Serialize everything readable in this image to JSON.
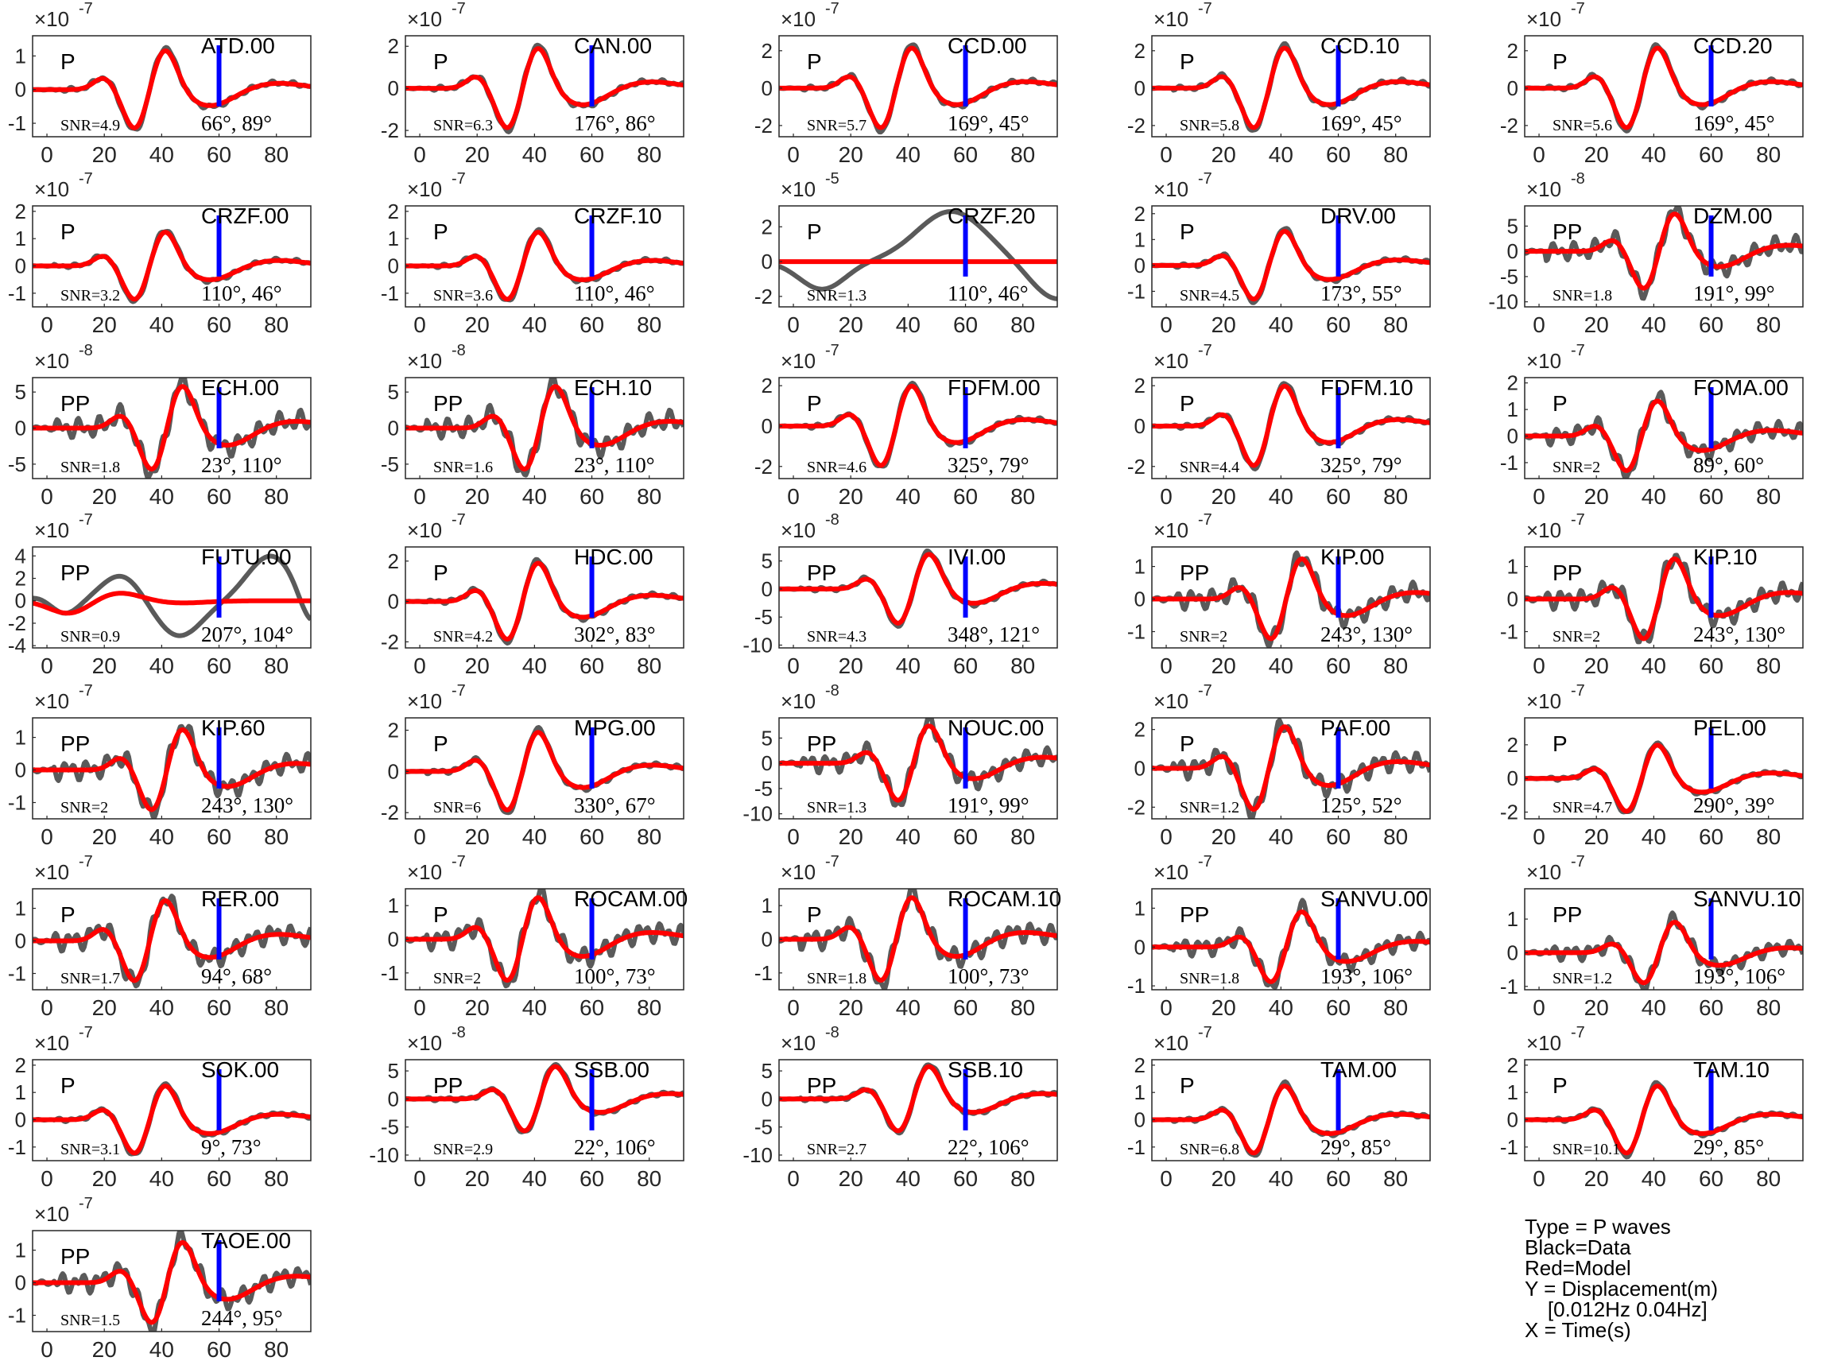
{
  "xticks": [
    0,
    20,
    40,
    60,
    80
  ],
  "xlim": [
    -5,
    92
  ],
  "colors": {
    "data": "#5a5a5a",
    "model": "#ff0000",
    "marker": "#0000ff"
  },
  "marker_time": 60,
  "panels": [
    {
      "station": "ATD.00",
      "phase": "P",
      "snr": "SNR=4.9",
      "angles": "66°, 89°",
      "exp": "-7",
      "yticks": [
        -1,
        0,
        1
      ],
      "ylim": [
        -1.4,
        1.6
      ]
    },
    {
      "station": "CAN.00",
      "phase": "P",
      "snr": "SNR=6.3",
      "angles": "176°, 86°",
      "exp": "-7",
      "yticks": [
        -2,
        0,
        2
      ],
      "ylim": [
        -2.3,
        2.5
      ]
    },
    {
      "station": "CCD.00",
      "phase": "P",
      "snr": "SNR=5.7",
      "angles": "169°, 45°",
      "exp": "-7",
      "yticks": [
        -2,
        0,
        2
      ],
      "ylim": [
        -2.6,
        2.8
      ]
    },
    {
      "station": "CCD.10",
      "phase": "P",
      "snr": "SNR=5.8",
      "angles": "169°, 45°",
      "exp": "-7",
      "yticks": [
        -2,
        0,
        2
      ],
      "ylim": [
        -2.6,
        2.8
      ]
    },
    {
      "station": "CCD.20",
      "phase": "P",
      "snr": "SNR=5.6",
      "angles": "169°, 45°",
      "exp": "-7",
      "yticks": [
        -2,
        0,
        2
      ],
      "ylim": [
        -2.6,
        2.8
      ]
    },
    {
      "station": "CRZF.00",
      "phase": "P",
      "snr": "SNR=3.2",
      "angles": "110°, 46°",
      "exp": "-7",
      "yticks": [
        -1,
        0,
        1,
        2
      ],
      "ylim": [
        -1.5,
        2.2
      ]
    },
    {
      "station": "CRZF.10",
      "phase": "P",
      "snr": "SNR=3.6",
      "angles": "110°, 46°",
      "exp": "-7",
      "yticks": [
        -1,
        0,
        1,
        2
      ],
      "ylim": [
        -1.5,
        2.2
      ]
    },
    {
      "station": "CRZF.20",
      "phase": "P",
      "snr": "SNR=1.3",
      "angles": "110°, 46°",
      "exp": "-5",
      "yticks": [
        -2,
        0,
        2
      ],
      "ylim": [
        -2.6,
        3.2
      ]
    },
    {
      "station": "DRV.00",
      "phase": "P",
      "snr": "SNR=4.5",
      "angles": "173°, 55°",
      "exp": "-7",
      "yticks": [
        -1,
        0,
        1,
        2
      ],
      "ylim": [
        -1.6,
        2.3
      ]
    },
    {
      "station": "DZM.00",
      "phase": "PP",
      "snr": "SNR=1.8",
      "angles": "191°, 99°",
      "exp": "-8",
      "yticks": [
        -10,
        -5,
        0,
        5
      ],
      "ylim": [
        -11,
        9
      ]
    },
    {
      "station": "ECH.00",
      "phase": "PP",
      "snr": "SNR=1.8",
      "angles": "23°, 110°",
      "exp": "-8",
      "yticks": [
        -5,
        0,
        5
      ],
      "ylim": [
        -7,
        7
      ]
    },
    {
      "station": "ECH.10",
      "phase": "PP",
      "snr": "SNR=1.6",
      "angles": "23°, 110°",
      "exp": "-8",
      "yticks": [
        -5,
        0,
        5
      ],
      "ylim": [
        -7,
        7
      ]
    },
    {
      "station": "FDFM.00",
      "phase": "P",
      "snr": "SNR=4.6",
      "angles": "325°, 79°",
      "exp": "-7",
      "yticks": [
        -2,
        0,
        2
      ],
      "ylim": [
        -2.6,
        2.4
      ]
    },
    {
      "station": "FDFM.10",
      "phase": "P",
      "snr": "SNR=4.4",
      "angles": "325°, 79°",
      "exp": "-7",
      "yticks": [
        -2,
        0,
        2
      ],
      "ylim": [
        -2.6,
        2.4
      ]
    },
    {
      "station": "FOMA.00",
      "phase": "P",
      "snr": "SNR=2",
      "angles": "89°, 60°",
      "exp": "-7",
      "yticks": [
        -1,
        0,
        1,
        2
      ],
      "ylim": [
        -1.6,
        2.2
      ]
    },
    {
      "station": "FUTU.00",
      "phase": "PP",
      "snr": "SNR=0.9",
      "angles": "207°, 104°",
      "exp": "-7",
      "yticks": [
        -4,
        -2,
        0,
        2,
        4
      ],
      "ylim": [
        -4.2,
        4.8
      ]
    },
    {
      "station": "HDC.00",
      "phase": "P",
      "snr": "SNR=4.2",
      "angles": "302°, 83°",
      "exp": "-7",
      "yticks": [
        -2,
        0,
        2
      ],
      "ylim": [
        -2.3,
        2.7
      ]
    },
    {
      "station": "IVI.00",
      "phase": "PP",
      "snr": "SNR=4.3",
      "angles": "348°, 121°",
      "exp": "-8",
      "yticks": [
        -10,
        -5,
        0,
        5
      ],
      "ylim": [
        -10.5,
        7.5
      ]
    },
    {
      "station": "KIP.00",
      "phase": "PP",
      "snr": "SNR=2",
      "angles": "243°, 130°",
      "exp": "-7",
      "yticks": [
        -1,
        0,
        1
      ],
      "ylim": [
        -1.5,
        1.6
      ]
    },
    {
      "station": "KIP.10",
      "phase": "PP",
      "snr": "SNR=2",
      "angles": "243°, 130°",
      "exp": "-7",
      "yticks": [
        -1,
        0,
        1
      ],
      "ylim": [
        -1.5,
        1.6
      ]
    },
    {
      "station": "KIP.60",
      "phase": "PP",
      "snr": "SNR=2",
      "angles": "243°, 130°",
      "exp": "-7",
      "yticks": [
        -1,
        0,
        1
      ],
      "ylim": [
        -1.5,
        1.6
      ]
    },
    {
      "station": "MPG.00",
      "phase": "P",
      "snr": "SNR=6",
      "angles": "330°, 67°",
      "exp": "-7",
      "yticks": [
        -2,
        0,
        2
      ],
      "ylim": [
        -2.3,
        2.6
      ]
    },
    {
      "station": "NOUC.00",
      "phase": "PP",
      "snr": "SNR=1.3",
      "angles": "191°, 99°",
      "exp": "-8",
      "yticks": [
        -10,
        -5,
        0,
        5
      ],
      "ylim": [
        -11,
        9
      ]
    },
    {
      "station": "PAF.00",
      "phase": "P",
      "snr": "SNR=1.2",
      "angles": "125°, 52°",
      "exp": "-7",
      "yticks": [
        -2,
        0,
        2
      ],
      "ylim": [
        -2.6,
        2.6
      ]
    },
    {
      "station": "PEL.00",
      "phase": "P",
      "snr": "SNR=4.7",
      "angles": "290°, 39°",
      "exp": "-7",
      "yticks": [
        -2,
        0,
        2
      ],
      "ylim": [
        -2.4,
        3.6
      ]
    },
    {
      "station": "RER.00",
      "phase": "P",
      "snr": "SNR=1.7",
      "angles": "94°, 68°",
      "exp": "-7",
      "yticks": [
        -1,
        0,
        1
      ],
      "ylim": [
        -1.5,
        1.6
      ]
    },
    {
      "station": "ROCAM.00",
      "phase": "P",
      "snr": "SNR=2",
      "angles": "100°, 73°",
      "exp": "-7",
      "yticks": [
        -1,
        0,
        1
      ],
      "ylim": [
        -1.5,
        1.5
      ]
    },
    {
      "station": "ROCAM.10",
      "phase": "P",
      "snr": "SNR=1.8",
      "angles": "100°, 73°",
      "exp": "-7",
      "yticks": [
        -1,
        0,
        1
      ],
      "ylim": [
        -1.5,
        1.5
      ]
    },
    {
      "station": "SANVU.00",
      "phase": "PP",
      "snr": "SNR=1.8",
      "angles": "193°, 106°",
      "exp": "-7",
      "yticks": [
        -1,
        0,
        1
      ],
      "ylim": [
        -1.1,
        1.5
      ]
    },
    {
      "station": "SANVU.10",
      "phase": "PP",
      "snr": "SNR=1.2",
      "angles": "193°, 106°",
      "exp": "-7",
      "yticks": [
        -1,
        0,
        1
      ],
      "ylim": [
        -1.1,
        1.9
      ]
    },
    {
      "station": "SOK.00",
      "phase": "P",
      "snr": "SNR=3.1",
      "angles": "9°, 73°",
      "exp": "-7",
      "yticks": [
        -1,
        0,
        1,
        2
      ],
      "ylim": [
        -1.5,
        2.2
      ]
    },
    {
      "station": "SSB.00",
      "phase": "PP",
      "snr": "SNR=2.9",
      "angles": "22°, 106°",
      "exp": "-8",
      "yticks": [
        -10,
        -5,
        0,
        5
      ],
      "ylim": [
        -11,
        7
      ]
    },
    {
      "station": "SSB.10",
      "phase": "PP",
      "snr": "SNR=2.7",
      "angles": "22°, 106°",
      "exp": "-8",
      "yticks": [
        -10,
        -5,
        0,
        5
      ],
      "ylim": [
        -11,
        7
      ]
    },
    {
      "station": "TAM.00",
      "phase": "P",
      "snr": "SNR=6.8",
      "angles": "29°, 85°",
      "exp": "-7",
      "yticks": [
        -1,
        0,
        1,
        2
      ],
      "ylim": [
        -1.5,
        2.2
      ]
    },
    {
      "station": "TAM.10",
      "phase": "P",
      "snr": "SNR=10.1",
      "angles": "29°, 85°",
      "exp": "-7",
      "yticks": [
        -1,
        0,
        1,
        2
      ],
      "ylim": [
        -1.5,
        2.2
      ]
    },
    {
      "station": "TAOE.00",
      "phase": "PP",
      "snr": "SNR=1.5",
      "angles": "244°, 95°",
      "exp": "-7",
      "yticks": [
        -1,
        0,
        1
      ],
      "ylim": [
        -1.5,
        1.6
      ]
    }
  ],
  "legend": {
    "type": "Type = P waves",
    "black": "Black=Data",
    "red": "Red=Model",
    "y": "Y = Displacement(m)",
    "band": "    [0.012Hz 0.04Hz]",
    "x": "X = Time(s)"
  },
  "chart_data": {
    "type": "line",
    "x_axis": "Time(s)",
    "y_axis": "Displacement(m)",
    "xlim": [
      -5,
      92
    ],
    "series": [
      {
        "name": "Data"
      },
      {
        "name": "Model"
      }
    ]
  }
}
